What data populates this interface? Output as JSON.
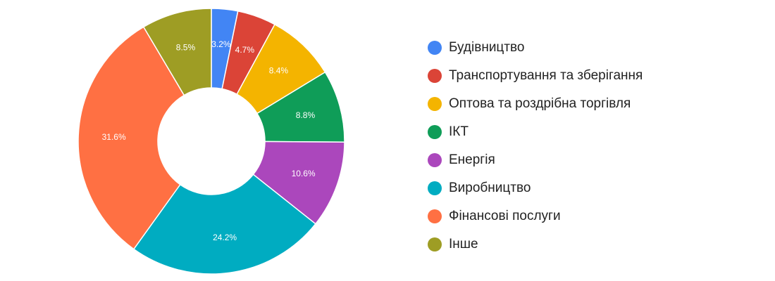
{
  "chart_data": {
    "type": "pie",
    "donut": true,
    "legend_position": "right",
    "categories": [
      "Будівництво",
      "Транспортування та зберігання",
      "Оптова та роздрібна торгівля",
      "ІКТ",
      "Енергія",
      "Виробництво",
      "Фінансові послуги",
      "Інше"
    ],
    "values": [
      3.2,
      4.7,
      8.4,
      8.8,
      10.6,
      24.2,
      31.6,
      8.5
    ],
    "labels": [
      "3.2%",
      "4.7%",
      "8.4%",
      "8.8%",
      "10.6%",
      "24.2%",
      "31.6%",
      "8.5%"
    ],
    "colors": [
      "#4285f4",
      "#db4437",
      "#f4b400",
      "#0f9d58",
      "#ab47bc",
      "#00acc1",
      "#ff7043",
      "#9e9d24"
    ]
  }
}
